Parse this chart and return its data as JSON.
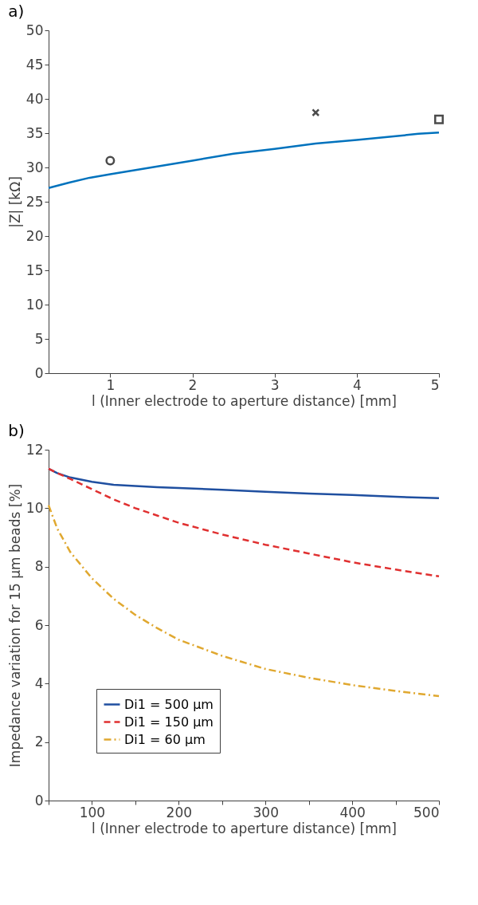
{
  "chart_data": [
    {
      "type": "line",
      "title": "a)",
      "xlabel": "l (Inner electrode to aperture distance) [mm]",
      "ylabel": "|Z|  [kΩ]",
      "xlim": [
        0.25,
        5
      ],
      "xticks": [
        1,
        2,
        3,
        4,
        5
      ],
      "ylim": [
        0,
        50
      ],
      "yticks": [
        0,
        5,
        10,
        15,
        20,
        25,
        30,
        35,
        40,
        45,
        50
      ],
      "grid": false,
      "legend": false,
      "series": [
        {
          "type": "line",
          "color": "#0072bd",
          "line_style": "solid",
          "x": [
            0.25,
            0.5,
            0.75,
            1,
            1.5,
            2,
            2.5,
            3,
            3.5,
            4,
            4.5,
            4.75,
            5
          ],
          "values": [
            27,
            27.8,
            28.5,
            29,
            30,
            31,
            32,
            32.7,
            33.5,
            34,
            34.6,
            34.9,
            35.1
          ]
        },
        {
          "type": "scatter",
          "color": "#000000",
          "marker": "circle",
          "x": [
            1
          ],
          "values": [
            31
          ]
        },
        {
          "type": "scatter",
          "color": "#000000",
          "marker": "cross",
          "x": [
            3.5
          ],
          "values": [
            38
          ]
        },
        {
          "type": "scatter",
          "color": "#000000",
          "marker": "square",
          "x": [
            5
          ],
          "values": [
            37
          ]
        }
      ]
    },
    {
      "type": "line",
      "title": "b)",
      "xlabel": "l (Inner electrode to aperture distance) [mm]",
      "ylabel": "Impedance variation for 15 μm beads [%]",
      "xlim": [
        50,
        500
      ],
      "xticks": [
        {
          "value": 50,
          "label": null
        },
        100,
        {
          "value": 150,
          "label": null
        },
        200,
        {
          "value": 250,
          "label": null
        },
        300,
        {
          "value": 350,
          "label": null
        },
        400,
        {
          "value": 450,
          "label": null
        },
        500
      ],
      "ylim": [
        0,
        12
      ],
      "yticks": [
        0,
        2,
        4,
        6,
        8,
        10,
        12
      ],
      "grid": false,
      "legend": "bottom left",
      "x": [
        50,
        60,
        75,
        100,
        125,
        150,
        175,
        200,
        250,
        300,
        350,
        400,
        450,
        500
      ],
      "series": [
        {
          "name": "Di1 = 500 μm",
          "color": "#1f4fa0",
          "line_style": "solid",
          "values": [
            11.35,
            11.2,
            11.05,
            10.9,
            10.8,
            10.76,
            10.72,
            10.69,
            10.63,
            10.56,
            10.5,
            10.45,
            10.39,
            10.34
          ]
        },
        {
          "name": "Di1 = 150 μm",
          "color": "#e03030",
          "line_style": "dashed",
          "values": [
            11.35,
            11.2,
            11.0,
            10.65,
            10.3,
            10.0,
            9.75,
            9.5,
            9.1,
            8.75,
            8.45,
            8.15,
            7.9,
            7.67
          ]
        },
        {
          "name": "Di1 = 60 μm",
          "color": "#e0a830",
          "line_style": "dashdot",
          "values": [
            10.1,
            9.3,
            8.5,
            7.6,
            6.9,
            6.35,
            5.9,
            5.5,
            4.95,
            4.5,
            4.2,
            3.95,
            3.75,
            3.57
          ]
        }
      ]
    }
  ]
}
